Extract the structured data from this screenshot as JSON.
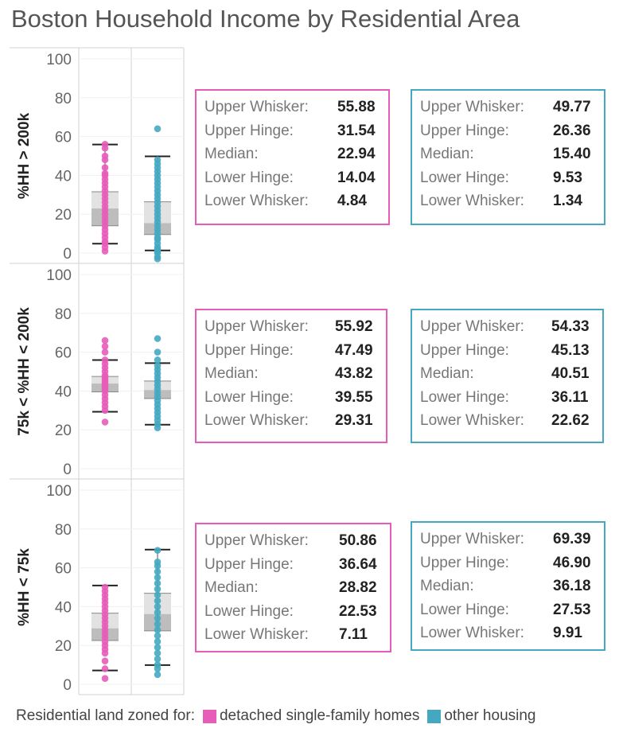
{
  "title": "Boston Household Income by Residential Area",
  "colors": {
    "single_family": "#e85cb9",
    "other": "#45a8c1"
  },
  "stat_labels": [
    "Upper Whisker:",
    "Upper Hinge:",
    "Median:",
    "Lower Hinge:",
    "Lower Whisker:"
  ],
  "legend": {
    "prefix": "Residential land zoned for:",
    "items": [
      {
        "label": "detached single-family homes",
        "color": "#e85cb9"
      },
      {
        "label": "other housing",
        "color": "#45a8c1"
      }
    ]
  },
  "chart_data": {
    "type": "boxplot",
    "y_range": [
      0,
      100
    ],
    "y_ticks": [
      "0",
      "20",
      "40",
      "60",
      "80",
      "100"
    ],
    "categories": [
      "detached single-family homes",
      "other housing"
    ],
    "panels": [
      {
        "ylabel": "%HH > 200k",
        "boxes": [
          {
            "upper_whisker": "55.88",
            "upper_hinge": "31.54",
            "median": "22.94",
            "lower_hinge": "14.04",
            "lower_whisker": "4.84",
            "points": [
              1,
              3,
              5,
              6,
              8,
              10,
              12,
              14,
              16,
              18,
              20,
              22,
              24,
              26,
              28,
              30,
              32,
              34,
              36,
              38,
              40,
              41,
              44,
              48,
              50,
              54,
              56
            ]
          },
          {
            "upper_whisker": "49.77",
            "upper_hinge": "26.36",
            "median": "15.40",
            "lower_hinge": "9.53",
            "lower_whisker": "1.34",
            "points": [
              -3,
              -2,
              0,
              1,
              2,
              3,
              5,
              7,
              8,
              10,
              12,
              14,
              16,
              18,
              20,
              22,
              24,
              26,
              28,
              30,
              32,
              34,
              36,
              38,
              40,
              42,
              44,
              46,
              48,
              64
            ]
          }
        ]
      },
      {
        "ylabel": "75k < %HH < 200k",
        "boxes": [
          {
            "upper_whisker": "55.92",
            "upper_hinge": "47.49",
            "median": "43.82",
            "lower_hinge": "39.55",
            "lower_whisker": "29.31",
            "points": [
              24,
              30,
              32,
              34,
              36,
              38,
              40,
              41,
              42,
              43,
              44,
              45,
              46,
              47,
              48,
              50,
              52,
              54,
              56,
              60,
              63,
              66
            ]
          },
          {
            "upper_whisker": "54.33",
            "upper_hinge": "45.13",
            "median": "40.51",
            "lower_hinge": "36.11",
            "lower_whisker": "22.62",
            "points": [
              21,
              23,
              25,
              27,
              29,
              31,
              33,
              35,
              37,
              39,
              41,
              43,
              45,
              47,
              49,
              51,
              53,
              56,
              60,
              67
            ]
          }
        ]
      },
      {
        "ylabel": "%HH < 75k",
        "boxes": [
          {
            "upper_whisker": "50.86",
            "upper_hinge": "36.64",
            "median": "28.82",
            "lower_hinge": "22.53",
            "lower_whisker": "7.11",
            "points": [
              3,
              8,
              12,
              16,
              18,
              20,
              22,
              24,
              26,
              28,
              30,
              32,
              34,
              36,
              38,
              40,
              42,
              44,
              46,
              48,
              50
            ]
          },
          {
            "upper_whisker": "69.39",
            "upper_hinge": "46.90",
            "median": "36.18",
            "lower_hinge": "27.53",
            "lower_whisker": "9.91",
            "points": [
              5,
              8,
              10,
              13,
              16,
              19,
              22,
              25,
              28,
              31,
              34,
              37,
              40,
              43,
              46,
              49,
              52,
              55,
              58,
              61,
              63,
              69
            ]
          }
        ]
      }
    ]
  }
}
